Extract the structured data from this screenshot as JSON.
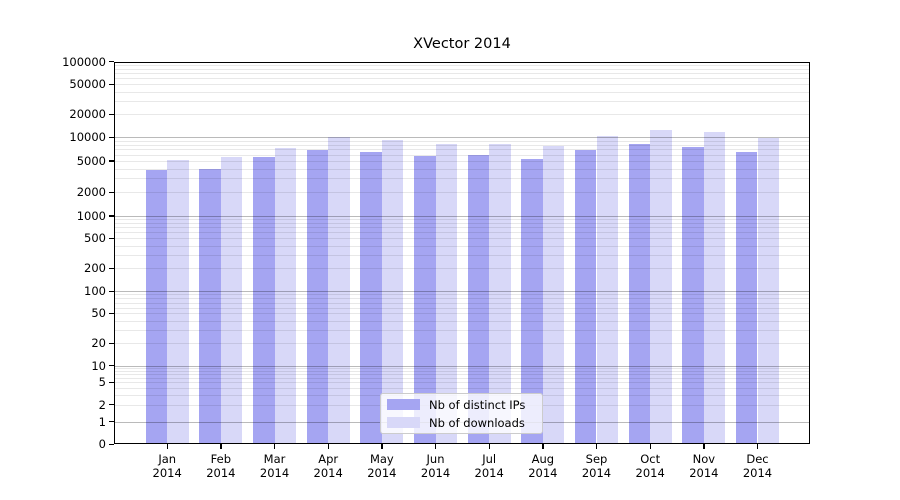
{
  "chart_data": {
    "type": "bar",
    "title": "XVector 2014",
    "year": "2014",
    "months": [
      "Jan",
      "Feb",
      "Mar",
      "Apr",
      "May",
      "Jun",
      "Jul",
      "Aug",
      "Sep",
      "Oct",
      "Nov",
      "Dec"
    ],
    "series": [
      {
        "name": "Nb of distinct IPs",
        "color": "#a5a5f2",
        "values": [
          3800,
          4000,
          5600,
          6800,
          6500,
          5800,
          5900,
          5300,
          6800,
          8100,
          7600,
          6500
        ]
      },
      {
        "name": "Nb of downloads",
        "color": "#d8d8f8",
        "values": [
          5200,
          5600,
          7300,
          10000,
          9200,
          8300,
          8100,
          7800,
          10300,
          12600,
          11600,
          9900
        ]
      }
    ],
    "yscale": "symlog",
    "ylim": [
      0,
      100000
    ],
    "yticks": [
      0,
      1,
      2,
      5,
      10,
      20,
      50,
      100,
      200,
      500,
      1000,
      2000,
      5000,
      10000,
      20000,
      50000,
      100000
    ],
    "grid": true,
    "legend_position": "lower center",
    "colors": {
      "major_grid": "rgba(0,0,0,0.27)",
      "minor_grid": "rgba(0,0,0,0.09)",
      "spine": "#000000",
      "background": "#ffffff"
    }
  }
}
